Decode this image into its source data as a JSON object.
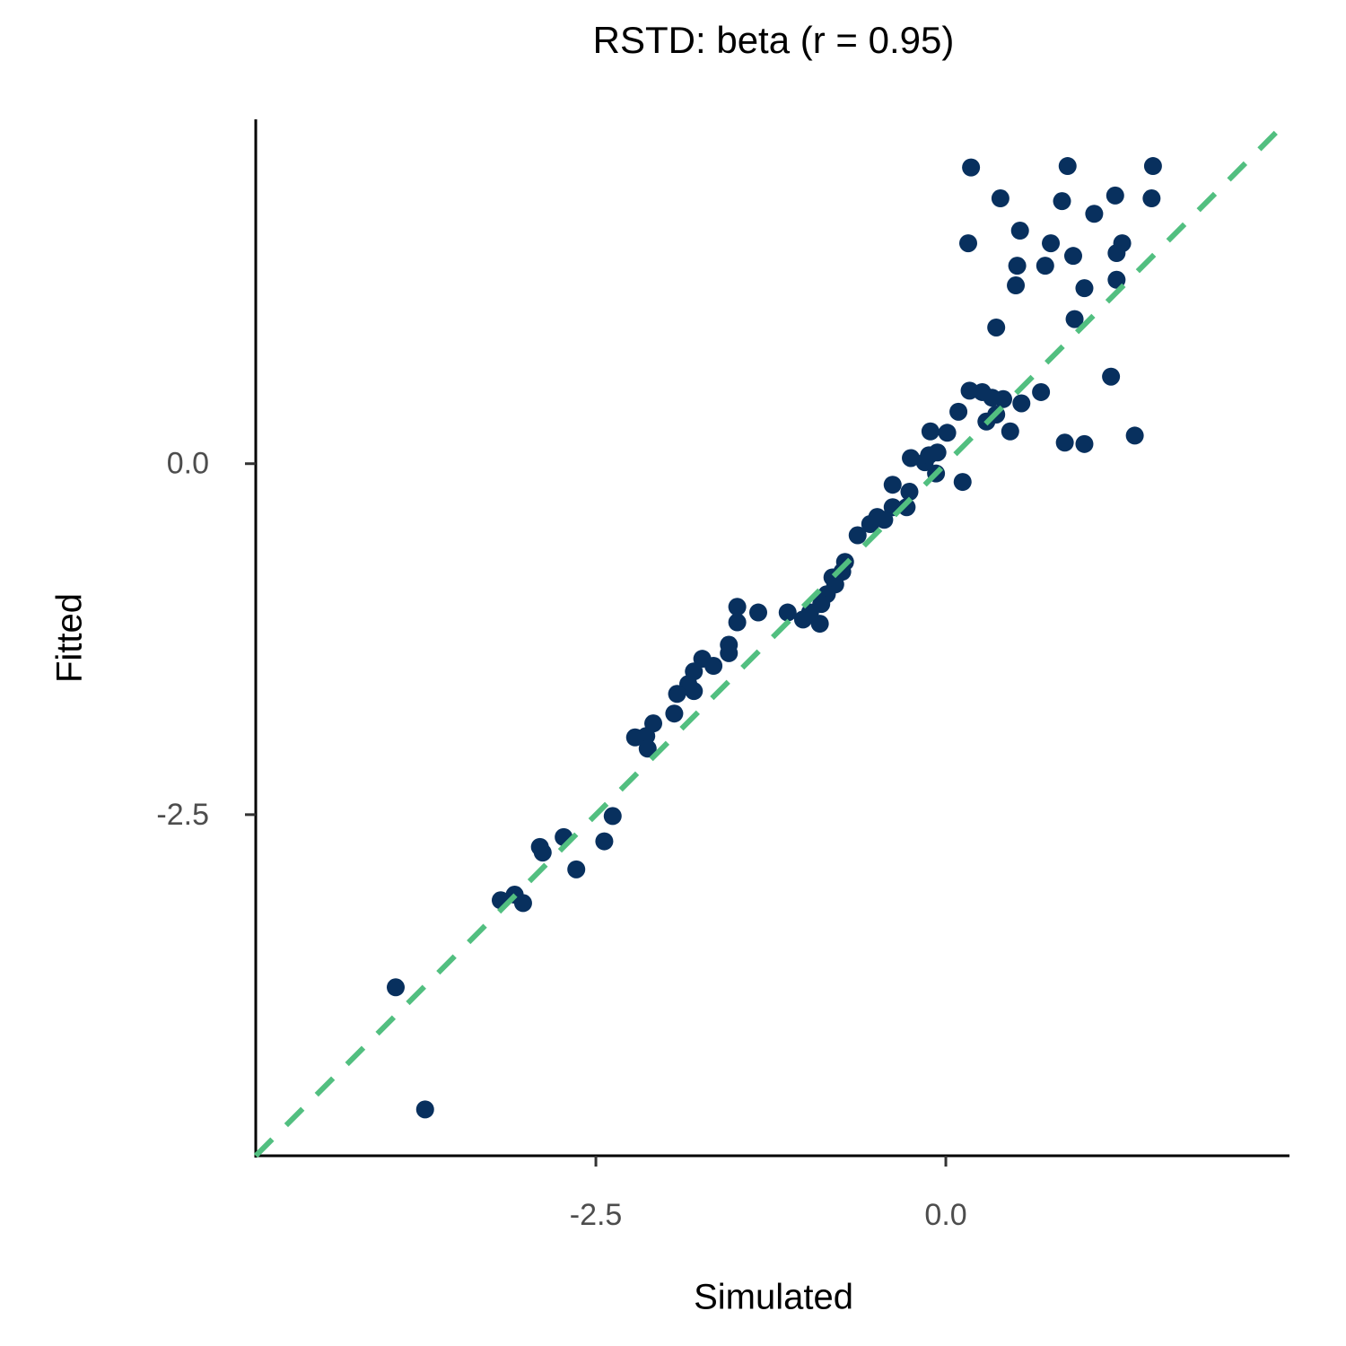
{
  "chart_data": {
    "type": "scatter",
    "title": "RSTD: beta (r = 0.95)",
    "x_label": "Simulated",
    "y_label": "Fitted",
    "point_color": "#08305e",
    "identity_line": true,
    "identity_line_color": "#52bf80",
    "xlim": [
      -4.93,
      2.455
    ],
    "ylim": [
      -4.93,
      2.44
    ],
    "xticks": [
      -2.5,
      {
        "value": 0,
        "label": "0.0"
      }
    ],
    "yticks": [
      -2.5,
      {
        "value": 0,
        "label": "0.0"
      }
    ],
    "x": [
      0.18,
      0.87,
      1.48,
      0.39,
      0.83,
      1.21,
      1.47,
      1.06,
      0.53,
      0.16,
      0.75,
      1.26,
      0.91,
      1.22,
      0.51,
      0.71,
      0.5,
      0.99,
      1.22,
      0.92,
      0.36,
      1.18,
      0.17,
      0.26,
      0.68,
      0.33,
      0.41,
      0.54,
      0.09,
      0.36,
      0.29,
      0.46,
      1.35,
      0.85,
      0.99,
      -0.11,
      0.01,
      -0.25,
      -0.15,
      -0.06,
      -0.12,
      -0.07,
      0.12,
      -0.38,
      -0.26,
      -0.38,
      -0.28,
      -0.44,
      -0.54,
      -0.49,
      -0.63,
      -0.72,
      -0.74,
      -0.81,
      -0.79,
      -0.85,
      -0.89,
      -0.9,
      -1.02,
      -1.13,
      -0.97,
      -1.34,
      -1.49,
      -1.49,
      -1.55,
      -1.55,
      -1.66,
      -1.74,
      -1.8,
      -1.8,
      -1.84,
      -1.92,
      -1.94,
      -2.09,
      -2.14,
      -2.22,
      -2.13,
      -2.38,
      -2.44,
      -2.73,
      -2.9,
      -2.88,
      -2.64,
      -3.08,
      -3.18,
      -3.02,
      -3.93,
      -3.72
    ],
    "y": [
      2.11,
      2.12,
      2.12,
      1.89,
      1.87,
      1.91,
      1.89,
      1.78,
      1.66,
      1.57,
      1.57,
      1.57,
      1.48,
      1.5,
      1.41,
      1.41,
      1.27,
      1.25,
      1.31,
      1.03,
      0.97,
      0.62,
      0.52,
      0.51,
      0.51,
      0.47,
      0.46,
      0.43,
      0.37,
      0.35,
      0.3,
      0.23,
      0.2,
      0.15,
      0.14,
      0.23,
      0.22,
      0.04,
      0.01,
      0.08,
      0.06,
      -0.07,
      -0.13,
      -0.15,
      -0.2,
      -0.31,
      -0.31,
      -0.4,
      -0.43,
      -0.38,
      -0.51,
      -0.7,
      -0.77,
      -0.81,
      -0.86,
      -0.93,
      -1.0,
      -1.14,
      -1.11,
      -1.06,
      -1.06,
      -1.06,
      -1.02,
      -1.13,
      -1.29,
      -1.35,
      -1.44,
      -1.39,
      -1.48,
      -1.62,
      -1.57,
      -1.64,
      -1.78,
      -1.85,
      -1.94,
      -1.95,
      -2.03,
      -2.51,
      -2.69,
      -2.66,
      -2.73,
      -2.77,
      -2.89,
      -3.07,
      -3.11,
      -3.13,
      -3.73,
      -4.6
    ]
  }
}
